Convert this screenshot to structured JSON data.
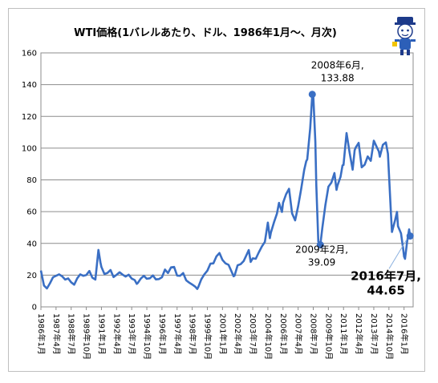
{
  "chart_data": {
    "type": "line",
    "title": "WTI価格(1バレルあたり、ドル、1986年1月～、月次)",
    "xlabel": "",
    "ylabel": "",
    "ylim": [
      0,
      160
    ],
    "yticks": [
      0,
      20,
      40,
      60,
      80,
      100,
      120,
      140,
      160
    ],
    "grid": true,
    "legend": "none",
    "line_color": "#3a6fc4",
    "marker_color": "#3a6fc4",
    "xticks": [
      {
        "label": "1986年1月",
        "t": 1986.0
      },
      {
        "label": "1987年4月",
        "t": 1987.25
      },
      {
        "label": "1988年7月",
        "t": 1988.5
      },
      {
        "label": "1989年10月",
        "t": 1989.75
      },
      {
        "label": "1991年1月",
        "t": 1991.0
      },
      {
        "label": "1992年4月",
        "t": 1992.25
      },
      {
        "label": "1993年7月",
        "t": 1993.5
      },
      {
        "label": "1994年10月",
        "t": 1994.75
      },
      {
        "label": "1996年1月",
        "t": 1996.0
      },
      {
        "label": "1997年4月",
        "t": 1997.25
      },
      {
        "label": "1998年7月",
        "t": 1998.5
      },
      {
        "label": "1999年10月",
        "t": 1999.75
      },
      {
        "label": "2001年1月",
        "t": 2001.0
      },
      {
        "label": "2002年4月",
        "t": 2002.25
      },
      {
        "label": "2003年7月",
        "t": 2003.5
      },
      {
        "label": "2004年10月",
        "t": 2004.75
      },
      {
        "label": "2006年1月",
        "t": 2006.0
      },
      {
        "label": "2007年4月",
        "t": 2007.25
      },
      {
        "label": "2008年7月",
        "t": 2008.5
      },
      {
        "label": "2009年10月",
        "t": 2009.75
      },
      {
        "label": "2011年1月",
        "t": 2011.0
      },
      {
        "label": "2012年4月",
        "t": 2012.25
      },
      {
        "label": "2013年7月",
        "t": 2013.5
      },
      {
        "label": "2014年10月",
        "t": 2014.75
      },
      {
        "label": "2016年1月",
        "t": 2016.0
      }
    ],
    "series": [
      {
        "points": [
          [
            1986.0,
            22.9
          ],
          [
            1986.25,
            13.5
          ],
          [
            1986.5,
            11.6
          ],
          [
            1986.75,
            14.9
          ],
          [
            1987.0,
            18.7
          ],
          [
            1987.5,
            20.5
          ],
          [
            1987.75,
            19.3
          ],
          [
            1988.0,
            17.2
          ],
          [
            1988.25,
            17.9
          ],
          [
            1988.5,
            15.5
          ],
          [
            1988.75,
            14.0
          ],
          [
            1989.0,
            18.0
          ],
          [
            1989.25,
            20.5
          ],
          [
            1989.5,
            19.6
          ],
          [
            1989.75,
            20.1
          ],
          [
            1990.0,
            22.6
          ],
          [
            1990.25,
            18.4
          ],
          [
            1990.5,
            17.2
          ],
          [
            1990.75,
            35.9
          ],
          [
            1990.917,
            28.0
          ],
          [
            1991.0,
            25.2
          ],
          [
            1991.25,
            20.7
          ],
          [
            1991.5,
            21.4
          ],
          [
            1991.75,
            23.2
          ],
          [
            1992.0,
            18.8
          ],
          [
            1992.25,
            20.2
          ],
          [
            1992.5,
            21.8
          ],
          [
            1992.75,
            20.3
          ],
          [
            1993.0,
            19.1
          ],
          [
            1993.25,
            20.3
          ],
          [
            1993.5,
            17.8
          ],
          [
            1993.75,
            16.9
          ],
          [
            1993.917,
            14.5
          ],
          [
            1994.0,
            15.0
          ],
          [
            1994.25,
            17.8
          ],
          [
            1994.5,
            19.6
          ],
          [
            1994.75,
            17.7
          ],
          [
            1995.0,
            18.0
          ],
          [
            1995.25,
            19.8
          ],
          [
            1995.5,
            17.3
          ],
          [
            1995.75,
            17.5
          ],
          [
            1996.0,
            18.7
          ],
          [
            1996.25,
            23.5
          ],
          [
            1996.5,
            21.3
          ],
          [
            1996.75,
            24.9
          ],
          [
            1997.0,
            25.2
          ],
          [
            1997.25,
            19.7
          ],
          [
            1997.5,
            19.6
          ],
          [
            1997.75,
            21.3
          ],
          [
            1998.0,
            16.7
          ],
          [
            1998.25,
            15.3
          ],
          [
            1998.5,
            14.1
          ],
          [
            1998.75,
            12.7
          ],
          [
            1998.917,
            11.3
          ],
          [
            1999.0,
            12.5
          ],
          [
            1999.25,
            17.3
          ],
          [
            1999.5,
            20.5
          ],
          [
            1999.75,
            22.8
          ],
          [
            2000.0,
            27.2
          ],
          [
            2000.25,
            27.4
          ],
          [
            2000.5,
            31.8
          ],
          [
            2000.75,
            33.9
          ],
          [
            2001.0,
            29.6
          ],
          [
            2001.25,
            27.4
          ],
          [
            2001.5,
            26.5
          ],
          [
            2001.75,
            22.2
          ],
          [
            2001.917,
            19.3
          ],
          [
            2002.0,
            19.7
          ],
          [
            2002.25,
            26.2
          ],
          [
            2002.5,
            26.9
          ],
          [
            2002.75,
            28.8
          ],
          [
            2003.0,
            32.9
          ],
          [
            2003.17,
            35.8
          ],
          [
            2003.33,
            28.3
          ],
          [
            2003.5,
            30.6
          ],
          [
            2003.75,
            30.3
          ],
          [
            2004.0,
            34.3
          ],
          [
            2004.25,
            38.0
          ],
          [
            2004.5,
            41.0
          ],
          [
            2004.75,
            53.1
          ],
          [
            2004.917,
            43.3
          ],
          [
            2005.0,
            46.8
          ],
          [
            2005.25,
            53.2
          ],
          [
            2005.5,
            58.7
          ],
          [
            2005.67,
            65.5
          ],
          [
            2005.917,
            59.8
          ],
          [
            2006.0,
            65.5
          ],
          [
            2006.25,
            70.9
          ],
          [
            2006.5,
            74.4
          ],
          [
            2006.75,
            58.9
          ],
          [
            2007.0,
            54.5
          ],
          [
            2007.25,
            63.5
          ],
          [
            2007.5,
            74.2
          ],
          [
            2007.75,
            86.2
          ],
          [
            2007.917,
            91.7
          ],
          [
            2008.0,
            92.9
          ],
          [
            2008.25,
            112.6
          ],
          [
            2008.417,
            133.88
          ],
          [
            2008.5,
            133.4
          ],
          [
            2008.67,
            104.0
          ],
          [
            2008.75,
            76.6
          ],
          [
            2008.917,
            41.1
          ],
          [
            2009.083,
            39.09
          ],
          [
            2009.25,
            49.7
          ],
          [
            2009.5,
            64.1
          ],
          [
            2009.75,
            75.7
          ],
          [
            2010.0,
            78.3
          ],
          [
            2010.25,
            84.3
          ],
          [
            2010.42,
            73.7
          ],
          [
            2010.5,
            76.4
          ],
          [
            2010.75,
            81.9
          ],
          [
            2010.917,
            89.2
          ],
          [
            2011.0,
            89.4
          ],
          [
            2011.25,
            109.5
          ],
          [
            2011.5,
            97.2
          ],
          [
            2011.75,
            86.4
          ],
          [
            2011.917,
            98.6
          ],
          [
            2012.0,
            100.3
          ],
          [
            2012.25,
            103.3
          ],
          [
            2012.5,
            87.9
          ],
          [
            2012.75,
            89.6
          ],
          [
            2013.0,
            94.8
          ],
          [
            2013.25,
            92.0
          ],
          [
            2013.5,
            104.7
          ],
          [
            2013.75,
            100.6
          ],
          [
            2013.917,
            97.9
          ],
          [
            2014.0,
            94.6
          ],
          [
            2014.25,
            102.1
          ],
          [
            2014.5,
            103.6
          ],
          [
            2014.67,
            96.5
          ],
          [
            2014.75,
            84.4
          ],
          [
            2014.917,
            59.3
          ],
          [
            2015.0,
            47.2
          ],
          [
            2015.25,
            54.4
          ],
          [
            2015.42,
            59.8
          ],
          [
            2015.5,
            50.9
          ],
          [
            2015.75,
            46.3
          ],
          [
            2015.917,
            37.2
          ],
          [
            2016.0,
            31.7
          ],
          [
            2016.08,
            30.3
          ],
          [
            2016.25,
            41.1
          ],
          [
            2016.42,
            48.8
          ],
          [
            2016.5,
            44.65
          ]
        ]
      }
    ],
    "annotations": [
      {
        "label_line1": "2008年6月,",
        "label_line2": "133.88",
        "t": 2008.417,
        "v": 133.88,
        "style": "normal"
      },
      {
        "label_line1": "2009年2月,",
        "label_line2": "39.09",
        "t": 2009.083,
        "v": 39.09,
        "style": "normal"
      },
      {
        "label_line1": "2016年7月,",
        "label_line2": "44.65",
        "t": 2016.5,
        "v": 44.65,
        "style": "big"
      }
    ]
  },
  "logo": {
    "icon": "mascot-icon"
  }
}
